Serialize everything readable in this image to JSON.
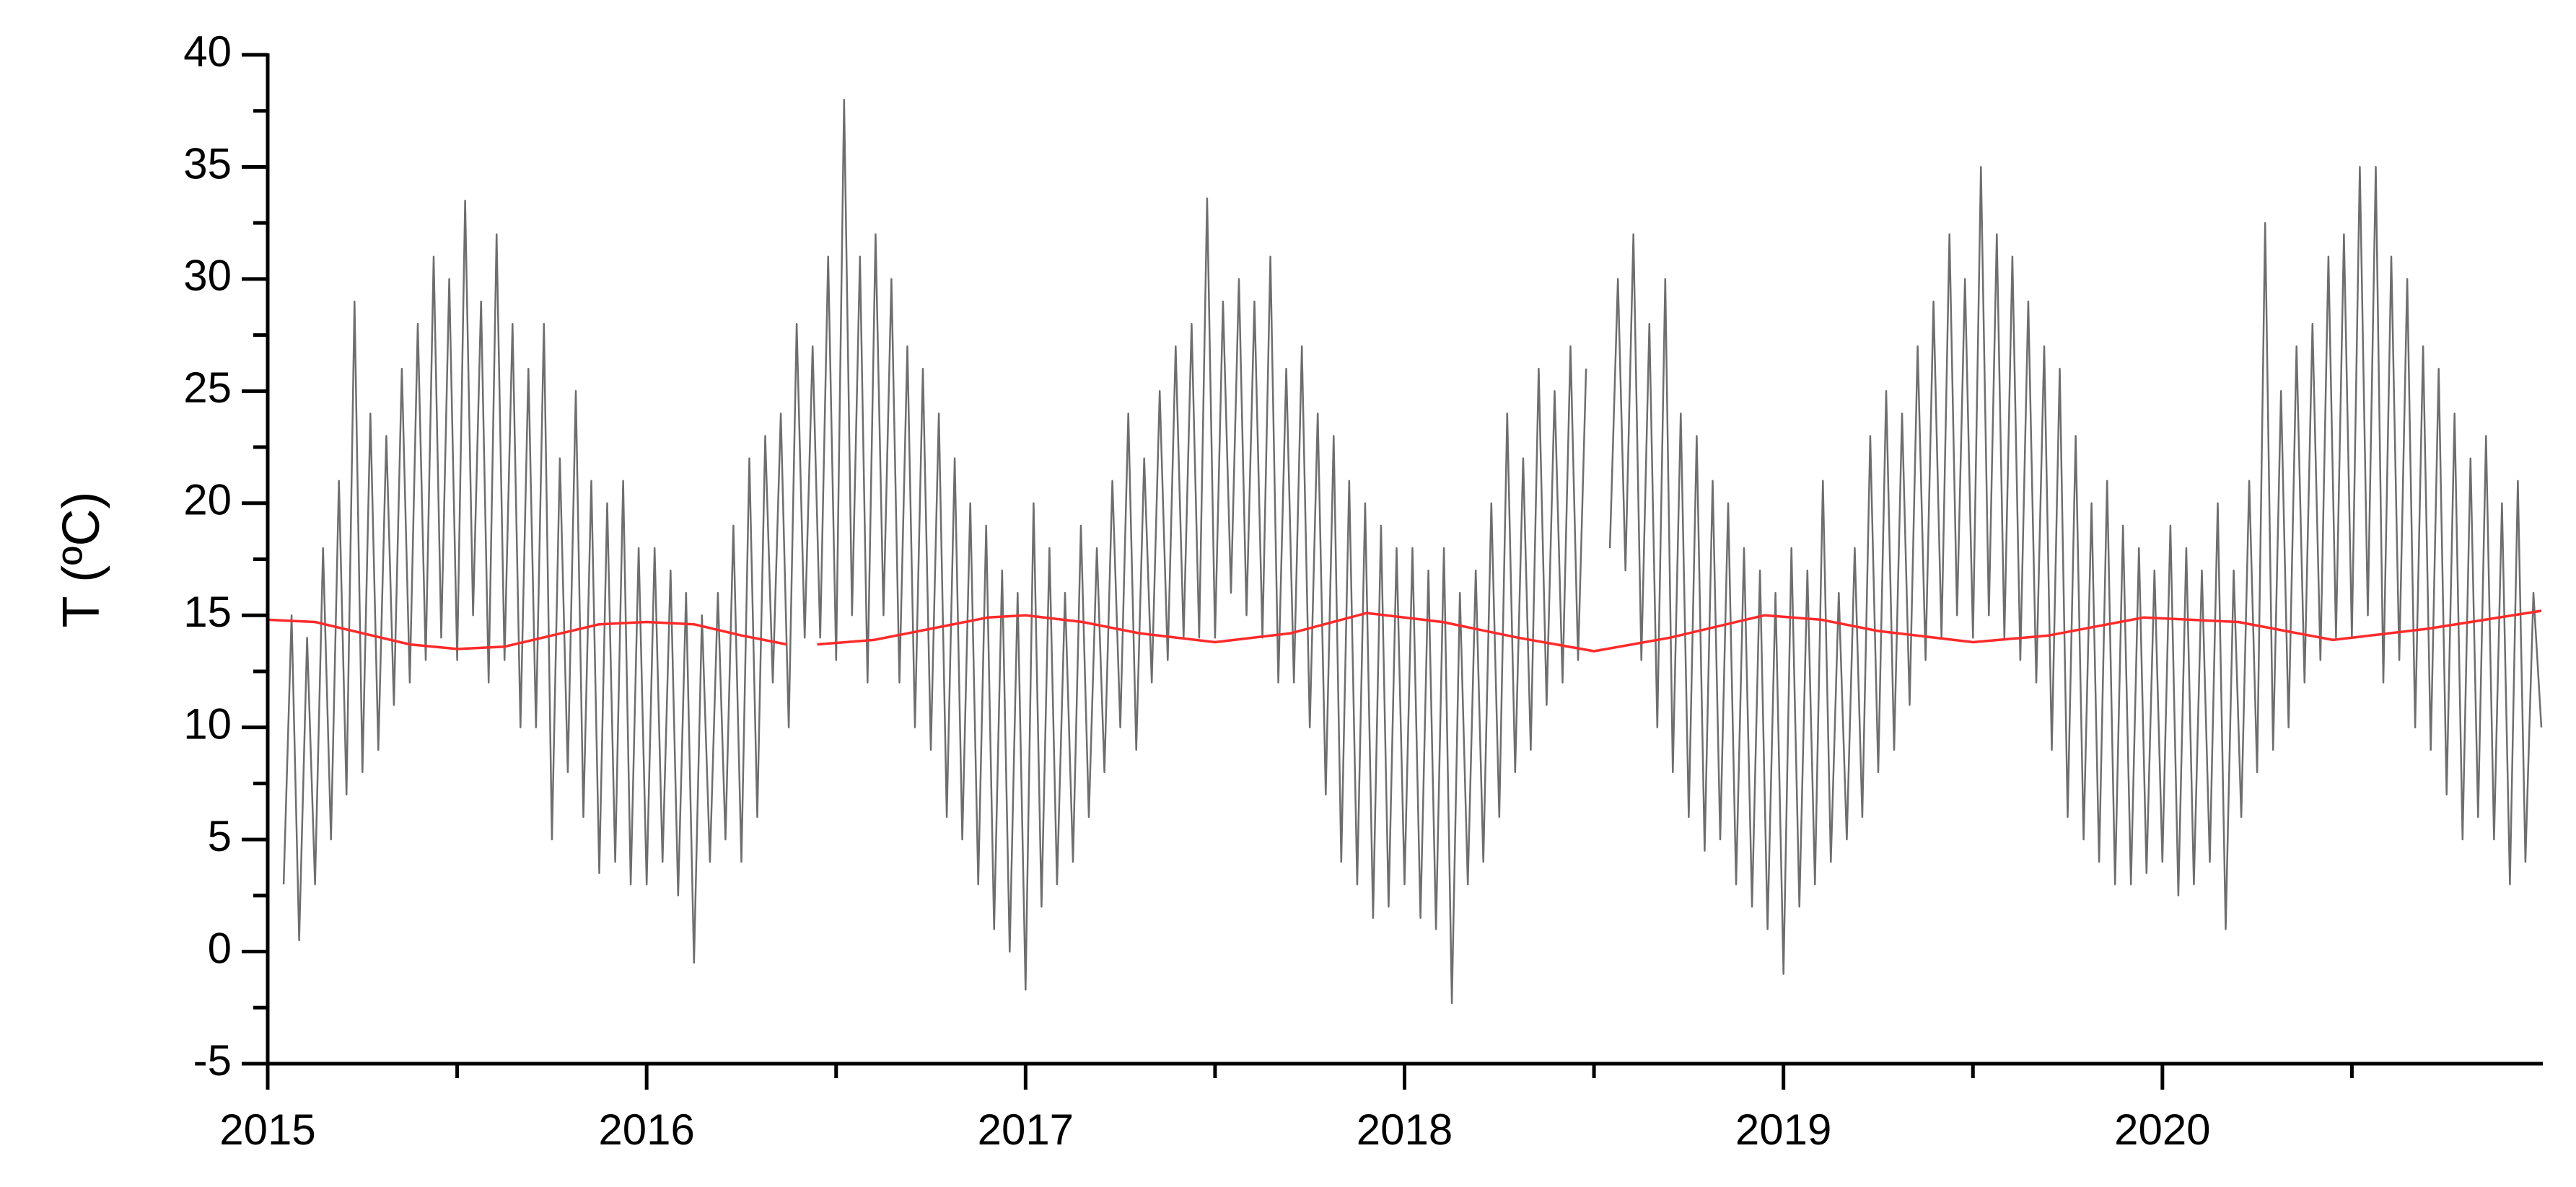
{
  "chart_data": {
    "type": "line",
    "y_label": "T (ºC)",
    "xlim": [
      2015,
      2021
    ],
    "xticks": [
      2015,
      2016,
      2017,
      2018,
      2019,
      2020
    ],
    "xminor": [
      2015.5,
      2016.5,
      2017.5,
      2018.5,
      2019.5,
      2020.5
    ],
    "ylim": [
      -5,
      40
    ],
    "yticks": [
      -5,
      0,
      5,
      10,
      15,
      20,
      25,
      30,
      35,
      40
    ],
    "yminor": [
      -2.5,
      2.5,
      7.5,
      12.5,
      17.5,
      22.5,
      27.5,
      32.5,
      37.5
    ],
    "series": [
      {
        "color": "#6e6e6e",
        "x": [
          2015,
          2015.021,
          2015.042,
          2015.063,
          2015.083,
          2015.104,
          2015.125,
          2015.146,
          2015.167,
          2015.188,
          2015.208,
          2015.229,
          2015.25,
          2015.271,
          2015.292,
          2015.313,
          2015.333,
          2015.354,
          2015.375,
          2015.396,
          2015.417,
          2015.438,
          2015.458,
          2015.479,
          2015.5,
          2015.521,
          2015.542,
          2015.563,
          2015.583,
          2015.604,
          2015.625,
          2015.646,
          2015.667,
          2015.688,
          2015.708,
          2015.729,
          2015.75,
          2015.771,
          2015.792,
          2015.813,
          2015.833,
          2015.854,
          2015.875,
          2015.896,
          2015.917,
          2015.938,
          2015.958,
          2015.979,
          2016,
          2016.021,
          2016.042,
          2016.063,
          2016.083,
          2016.104,
          2016.125,
          2016.146,
          2016.167,
          2016.188,
          2016.208,
          2016.229,
          2016.25,
          2016.271,
          2016.292,
          2016.313,
          2016.333,
          2016.354,
          2016.375,
          2016.396,
          2016.417,
          2016.438,
          2016.458,
          2016.479,
          2016.5,
          2016.521,
          2016.542,
          2016.563,
          2016.583,
          2016.604,
          2016.625,
          2016.646,
          2016.667,
          2016.688,
          2016.708,
          2016.729,
          2016.75,
          2016.771,
          2016.792,
          2016.813,
          2016.833,
          2016.854,
          2016.875,
          2016.896,
          2016.917,
          2016.938,
          2016.958,
          2016.979,
          2017,
          2017.021,
          2017.042,
          2017.063,
          2017.083,
          2017.104,
          2017.125,
          2017.146,
          2017.167,
          2017.188,
          2017.208,
          2017.229,
          2017.25,
          2017.271,
          2017.292,
          2017.313,
          2017.333,
          2017.354,
          2017.375,
          2017.396,
          2017.417,
          2017.438,
          2017.458,
          2017.479,
          2017.5,
          2017.521,
          2017.542,
          2017.563,
          2017.583,
          2017.604,
          2017.625,
          2017.646,
          2017.667,
          2017.688,
          2017.708,
          2017.729,
          2017.75,
          2017.771,
          2017.792,
          2017.813,
          2017.833,
          2017.854,
          2017.875,
          2017.896,
          2017.917,
          2017.938,
          2017.958,
          2017.979,
          2018,
          2018.021,
          2018.042,
          2018.063,
          2018.083,
          2018.104,
          2018.125,
          2018.146,
          2018.167,
          2018.188,
          2018.208,
          2018.229,
          2018.25,
          2018.271,
          2018.292,
          2018.313,
          2018.333,
          2018.354,
          2018.375,
          2018.396,
          2018.417,
          2018.438,
          2018.458,
          2018.479,
          2018.5,
          2018.521,
          2018.542,
          2018.563,
          2018.583,
          2018.604,
          2018.625,
          2018.646,
          2018.667,
          2018.688,
          2018.708,
          2018.729,
          2018.75,
          2018.771,
          2018.792,
          2018.813,
          2018.833,
          2018.854,
          2018.875,
          2018.896,
          2018.917,
          2018.938,
          2018.958,
          2018.979,
          2019,
          2019.021,
          2019.042,
          2019.063,
          2019.083,
          2019.104,
          2019.125,
          2019.146,
          2019.167,
          2019.188,
          2019.208,
          2019.229,
          2019.25,
          2019.271,
          2019.292,
          2019.313,
          2019.333,
          2019.354,
          2019.375,
          2019.396,
          2019.417,
          2019.438,
          2019.458,
          2019.479,
          2019.5,
          2019.521,
          2019.542,
          2019.563,
          2019.583,
          2019.604,
          2019.625,
          2019.646,
          2019.667,
          2019.688,
          2019.708,
          2019.729,
          2019.75,
          2019.771,
          2019.792,
          2019.813,
          2019.833,
          2019.854,
          2019.875,
          2019.896,
          2019.917,
          2019.938,
          2019.958,
          2019.979,
          2020,
          2020.021,
          2020.042,
          2020.063,
          2020.083,
          2020.104,
          2020.125,
          2020.146,
          2020.167,
          2020.188,
          2020.208,
          2020.229,
          2020.25,
          2020.271,
          2020.292,
          2020.313,
          2020.333,
          2020.354,
          2020.375,
          2020.396,
          2020.417,
          2020.438,
          2020.458,
          2020.479,
          2020.5,
          2020.521,
          2020.542,
          2020.563,
          2020.583,
          2020.604,
          2020.625,
          2020.646,
          2020.667,
          2020.688,
          2020.708,
          2020.729,
          2020.75,
          2020.771,
          2020.792,
          2020.813,
          2020.833,
          2020.854,
          2020.875,
          2020.896,
          2020.917,
          2020.938,
          2020.958,
          2020.979,
          2021
        ],
        "values": [
          null,
          null,
          3,
          15,
          0.5,
          14,
          3,
          18,
          5,
          21,
          7,
          29,
          8,
          24,
          9,
          23,
          11,
          26,
          12,
          28,
          13,
          31,
          14,
          30,
          13,
          33.5,
          15,
          29,
          12,
          32,
          13,
          28,
          10,
          26,
          10,
          28,
          5,
          22,
          8,
          25,
          6,
          21,
          3.5,
          20,
          4,
          21,
          3,
          18,
          3,
          18,
          4,
          17,
          2.5,
          16,
          -0.5,
          15,
          4,
          16,
          5,
          19,
          4,
          22,
          6,
          23,
          12,
          24,
          10,
          28,
          14,
          27,
          14,
          31,
          13,
          38,
          15,
          31,
          12,
          32,
          15,
          30,
          12,
          27,
          10,
          26,
          9,
          24,
          6,
          22,
          5,
          20,
          3,
          19,
          1,
          17,
          0,
          16,
          -1.7,
          20,
          2,
          18,
          3,
          16,
          4,
          19,
          6,
          18,
          8,
          21,
          10,
          24,
          9,
          22,
          12,
          25,
          13,
          27,
          14,
          28,
          14,
          33.6,
          14,
          29,
          16,
          30,
          15,
          29,
          14,
          31,
          12,
          26,
          12,
          27,
          10,
          24,
          7,
          23,
          4,
          21,
          3,
          20,
          1.5,
          19,
          2,
          18,
          3,
          18,
          1.5,
          17,
          1,
          18,
          -2.3,
          16,
          3,
          17,
          4,
          20,
          6,
          24,
          8,
          22,
          9,
          26,
          11,
          25,
          12,
          27,
          13,
          26,
          null,
          null,
          18,
          30,
          17,
          32,
          13,
          28,
          10,
          30,
          8,
          24,
          6,
          23,
          4.5,
          21,
          5,
          20,
          3,
          18,
          2,
          17,
          1,
          16,
          -1,
          18,
          2,
          17,
          3,
          21,
          4,
          16,
          5,
          18,
          6,
          23,
          8,
          25,
          9,
          24,
          11,
          27,
          13,
          29,
          14,
          32,
          15,
          30,
          14,
          35,
          15,
          32,
          14,
          31,
          13,
          29,
          12,
          27,
          9,
          26,
          6,
          23,
          5,
          20,
          4,
          21,
          3,
          19,
          3,
          18,
          3.5,
          17,
          4,
          19,
          2.5,
          18,
          3,
          17,
          4,
          20,
          1,
          17,
          6,
          21,
          8,
          32.5,
          9,
          25,
          10,
          27,
          12,
          28,
          13,
          31,
          14,
          32,
          14,
          35,
          15,
          35,
          12,
          31,
          13,
          30,
          10,
          27,
          9,
          26,
          7,
          24,
          5,
          22,
          6,
          23,
          5,
          20,
          3,
          21,
          4,
          16,
          10
        ]
      },
      {
        "color": "#ff2a2a",
        "x": [
          2015,
          2015.125,
          2015.25,
          2015.375,
          2015.5,
          2015.625,
          2015.75,
          2015.875,
          2016,
          2016.125,
          2016.25,
          2016.37,
          2016.4,
          2016.45,
          2016.6,
          2016.75,
          2016.9,
          2017,
          2017.15,
          2017.3,
          2017.5,
          2017.7,
          2017.9,
          2018.1,
          2018.3,
          2018.5,
          2018.7,
          2018.95,
          2019.1,
          2019.25,
          2019.5,
          2019.7,
          2019.95,
          2020.2,
          2020.45,
          2020.7,
          2021
        ],
        "values": [
          14.8,
          14.7,
          14.2,
          13.7,
          13.5,
          13.6,
          14.1,
          14.6,
          14.7,
          14.6,
          14.1,
          13.7,
          null,
          13.7,
          13.9,
          14.4,
          14.9,
          15.0,
          14.7,
          14.2,
          13.8,
          14.2,
          15.1,
          14.7,
          14.0,
          13.4,
          14.0,
          15.0,
          14.8,
          14.3,
          13.8,
          14.1,
          14.9,
          14.7,
          13.9,
          14.4,
          15.2
        ]
      }
    ]
  }
}
